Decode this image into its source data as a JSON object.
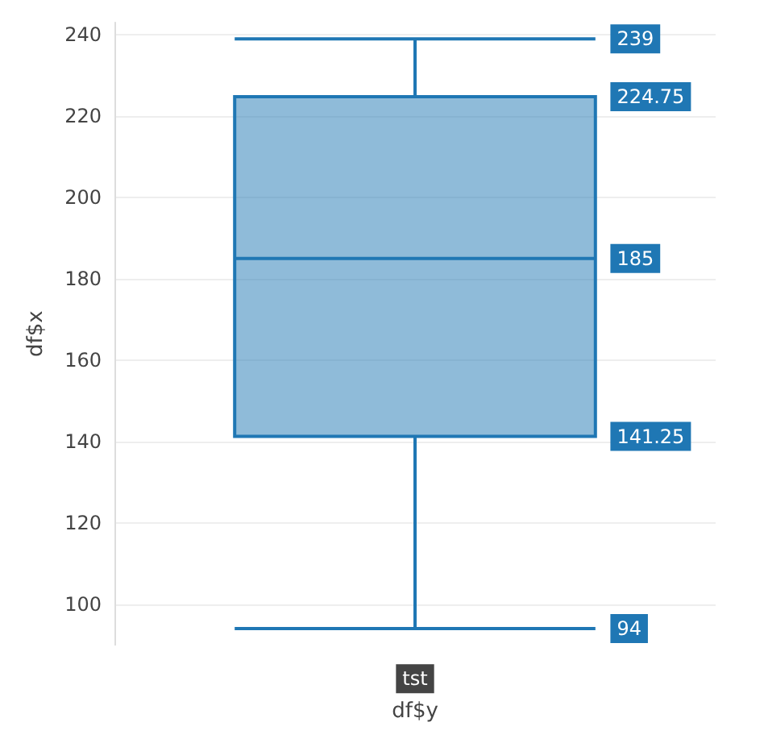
{
  "chart_data": {
    "type": "box",
    "xlabel": "df$y",
    "ylabel": "df$x",
    "categories": [
      "tst"
    ],
    "series": [
      {
        "color": "#1f77b4",
        "boxes": [
          {
            "low": 94,
            "q1": 141.25,
            "median": 185,
            "q3": 224.75,
            "high": 239
          }
        ]
      }
    ],
    "ylim": [
      90,
      243
    ],
    "yticks": [
      100,
      120,
      140,
      160,
      180,
      200,
      220,
      240
    ],
    "grid": "y",
    "annotations": [
      {
        "text": "239",
        "y": 239
      },
      "224.75",
      {
        "text": "185",
        "y": 185
      },
      "141.25",
      {
        "text": "94",
        "y": 94
      }
    ]
  }
}
